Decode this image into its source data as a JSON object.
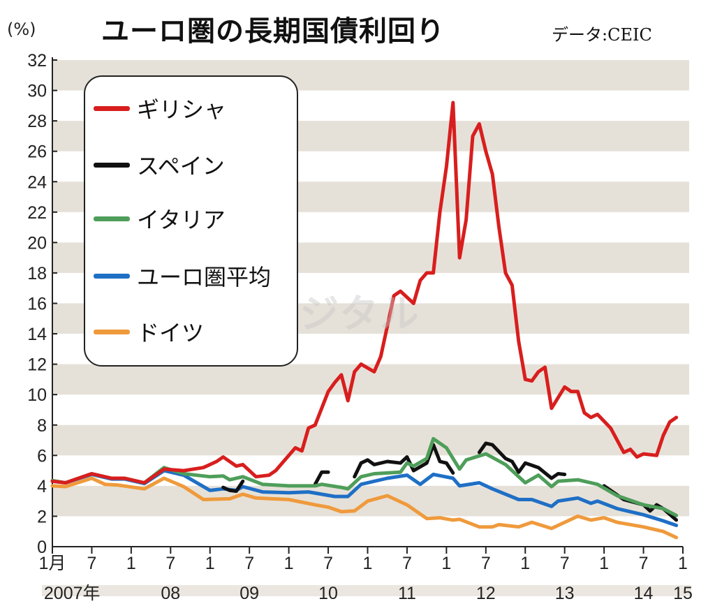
{
  "chart_data": {
    "type": "line",
    "title": "ユーロ圏の長期国債利回り",
    "source": "データ:CEIC",
    "ylabel": "(%)",
    "xlabel": "",
    "ylim": [
      0,
      32
    ],
    "y_ticks": [
      "0",
      "2",
      "4",
      "6",
      "8",
      "10",
      "12",
      "14",
      "16",
      "18",
      "20",
      "22",
      "24",
      "26",
      "28",
      "30",
      "32"
    ],
    "x_range": [
      "2007-01",
      "2015-01"
    ],
    "x_tick_labels": [
      {
        "date": "2007-01",
        "label": "1月"
      },
      {
        "date": "2007-07",
        "label": "7"
      },
      {
        "date": "2008-01",
        "label": "1"
      },
      {
        "date": "2008-07",
        "label": "7"
      },
      {
        "date": "2009-01",
        "label": "1"
      },
      {
        "date": "2009-07",
        "label": "7"
      },
      {
        "date": "2010-01",
        "label": "1"
      },
      {
        "date": "2010-07",
        "label": "7"
      },
      {
        "date": "2011-01",
        "label": "1"
      },
      {
        "date": "2011-07",
        "label": "7"
      },
      {
        "date": "2012-01",
        "label": "1"
      },
      {
        "date": "2012-07",
        "label": "7"
      },
      {
        "date": "2013-01",
        "label": "1"
      },
      {
        "date": "2013-07",
        "label": "7"
      },
      {
        "date": "2014-01",
        "label": "1"
      },
      {
        "date": "2014-07",
        "label": "7"
      },
      {
        "date": "2015-01",
        "label": "1"
      }
    ],
    "year_labels": [
      {
        "date": "2007-04",
        "label": "2007年"
      },
      {
        "date": "2008-07",
        "label": "08"
      },
      {
        "date": "2009-07",
        "label": "09"
      },
      {
        "date": "2010-07",
        "label": "10"
      },
      {
        "date": "2011-07",
        "label": "11"
      },
      {
        "date": "2012-07",
        "label": "12"
      },
      {
        "date": "2013-07",
        "label": "13"
      },
      {
        "date": "2014-07",
        "label": "14"
      },
      {
        "date": "2015-01",
        "label": "15"
      }
    ],
    "grid": "alternating horizontal bands every 2 units",
    "band_color": "#e6e1d8",
    "legend_position": "top-left",
    "series": [
      {
        "name": "ギリシャ",
        "color": "#d81e1e",
        "segments": [
          [
            [
              "2007-01",
              4.3
            ],
            [
              "2007-03",
              4.2
            ],
            [
              "2007-07",
              4.8
            ],
            [
              "2007-10",
              4.5
            ],
            [
              "2007-12",
              4.5
            ],
            [
              "2008-03",
              4.2
            ],
            [
              "2008-06",
              5.1
            ],
            [
              "2008-09",
              5.0
            ],
            [
              "2008-12",
              5.2
            ],
            [
              "2009-02",
              5.6
            ],
            [
              "2009-03",
              5.9
            ],
            [
              "2009-05",
              5.3
            ],
            [
              "2009-06",
              5.4
            ],
            [
              "2009-08",
              4.6
            ],
            [
              "2009-10",
              4.7
            ],
            [
              "2009-11",
              5.0
            ],
            [
              "2010-02",
              6.5
            ],
            [
              "2010-03",
              6.3
            ],
            [
              "2010-04",
              7.8
            ],
            [
              "2010-05",
              8.0
            ],
            [
              "2010-07",
              10.2
            ],
            [
              "2010-08",
              10.8
            ],
            [
              "2010-09",
              11.3
            ],
            [
              "2010-10",
              9.6
            ],
            [
              "2010-11",
              11.5
            ],
            [
              "2010-12",
              12.0
            ],
            [
              "2011-02",
              11.5
            ],
            [
              "2011-03",
              12.5
            ],
            [
              "2011-05",
              16.5
            ],
            [
              "2011-06",
              16.8
            ],
            [
              "2011-08",
              16.0
            ],
            [
              "2011-09",
              17.5
            ],
            [
              "2011-10",
              18.0
            ],
            [
              "2011-11",
              18.0
            ],
            [
              "2011-12",
              22.0
            ],
            [
              "2012-01",
              25.0
            ],
            [
              "2012-02",
              29.2
            ],
            [
              "2012-03",
              19.0
            ],
            [
              "2012-04",
              21.5
            ],
            [
              "2012-05",
              27.0
            ],
            [
              "2012-06",
              27.8
            ],
            [
              "2012-07",
              26.0
            ],
            [
              "2012-08",
              24.5
            ],
            [
              "2012-09",
              21.0
            ],
            [
              "2012-10",
              18.0
            ],
            [
              "2012-11",
              17.2
            ],
            [
              "2012-12",
              13.5
            ],
            [
              "2013-01",
              11.0
            ],
            [
              "2013-02",
              10.9
            ],
            [
              "2013-03",
              11.5
            ],
            [
              "2013-04",
              11.8
            ],
            [
              "2013-05",
              9.1
            ],
            [
              "2013-06",
              9.8
            ],
            [
              "2013-07",
              10.5
            ],
            [
              "2013-08",
              10.2
            ],
            [
              "2013-09",
              10.2
            ],
            [
              "2013-10",
              8.8
            ],
            [
              "2013-11",
              8.5
            ],
            [
              "2013-12",
              8.7
            ],
            [
              "2014-02",
              7.8
            ],
            [
              "2014-04",
              6.2
            ],
            [
              "2014-05",
              6.4
            ],
            [
              "2014-06",
              5.9
            ],
            [
              "2014-07",
              6.1
            ],
            [
              "2014-09",
              6.0
            ],
            [
              "2014-10",
              7.3
            ],
            [
              "2014-11",
              8.2
            ],
            [
              "2014-12",
              8.5
            ]
          ]
        ]
      },
      {
        "name": "スペイン",
        "color": "#111111",
        "segments": [
          [
            [
              "2009-03",
              3.9
            ],
            [
              "2009-04",
              3.7
            ],
            [
              "2009-05",
              3.65
            ],
            [
              "2009-06",
              4.3
            ]
          ],
          [
            [
              "2010-05",
              4.1
            ],
            [
              "2010-06",
              4.9
            ],
            [
              "2010-07",
              4.9
            ]
          ],
          [
            [
              "2010-11",
              4.6
            ],
            [
              "2010-12",
              5.5
            ],
            [
              "2011-01",
              5.7
            ],
            [
              "2011-02",
              5.4
            ],
            [
              "2011-04",
              5.6
            ],
            [
              "2011-06",
              5.5
            ],
            [
              "2011-07",
              5.9
            ],
            [
              "2011-08",
              5.0
            ],
            [
              "2011-10",
              5.5
            ],
            [
              "2011-11",
              6.7
            ],
            [
              "2011-12",
              5.6
            ],
            [
              "2012-01",
              5.5
            ],
            [
              "2012-02",
              4.85
            ]
          ],
          [
            [
              "2012-06",
              6.2
            ],
            [
              "2012-07",
              6.8
            ],
            [
              "2012-08",
              6.7
            ],
            [
              "2012-10",
              5.8
            ],
            [
              "2012-11",
              5.6
            ],
            [
              "2012-12",
              4.9
            ],
            [
              "2013-01",
              5.5
            ],
            [
              "2013-03",
              5.2
            ],
            [
              "2013-05",
              4.5
            ],
            [
              "2013-06",
              4.8
            ],
            [
              "2013-07",
              4.75
            ]
          ],
          [
            [
              "2014-01",
              4.0
            ],
            [
              "2014-04",
              3.1
            ],
            [
              "2014-07",
              2.75
            ],
            [
              "2014-08",
              2.35
            ],
            [
              "2014-09",
              2.75
            ],
            [
              "2014-10",
              2.5
            ],
            [
              "2014-12",
              1.75
            ]
          ]
        ]
      },
      {
        "name": "イタリア",
        "color": "#4e9e5a",
        "segments": [
          [
            [
              "2007-01",
              4.35
            ],
            [
              "2007-03",
              4.2
            ],
            [
              "2007-07",
              4.8
            ],
            [
              "2007-10",
              4.5
            ],
            [
              "2007-12",
              4.5
            ],
            [
              "2008-03",
              4.2
            ],
            [
              "2008-06",
              5.2
            ],
            [
              "2008-09",
              4.8
            ],
            [
              "2009-01",
              4.6
            ],
            [
              "2009-03",
              4.65
            ],
            [
              "2009-04",
              4.4
            ],
            [
              "2009-06",
              4.6
            ],
            [
              "2009-09",
              4.1
            ],
            [
              "2010-01",
              4.0
            ],
            [
              "2010-05",
              4.0
            ],
            [
              "2010-06",
              4.1
            ],
            [
              "2010-09",
              3.9
            ],
            [
              "2010-10",
              3.8
            ],
            [
              "2010-12",
              4.6
            ],
            [
              "2011-02",
              4.8
            ],
            [
              "2011-06",
              4.9
            ],
            [
              "2011-07",
              5.5
            ],
            [
              "2011-08",
              5.3
            ],
            [
              "2011-10",
              5.8
            ],
            [
              "2011-11",
              7.1
            ],
            [
              "2012-01",
              6.5
            ],
            [
              "2012-03",
              5.1
            ],
            [
              "2012-04",
              5.7
            ],
            [
              "2012-07",
              6.1
            ],
            [
              "2012-10",
              5.4
            ],
            [
              "2013-01",
              4.2
            ],
            [
              "2013-03",
              4.7
            ],
            [
              "2013-05",
              3.95
            ],
            [
              "2013-06",
              4.3
            ],
            [
              "2013-09",
              4.4
            ],
            [
              "2013-12",
              4.1
            ],
            [
              "2014-03",
              3.35
            ],
            [
              "2014-07",
              2.75
            ],
            [
              "2014-10",
              2.5
            ],
            [
              "2014-12",
              2.05
            ]
          ]
        ]
      },
      {
        "name": "ユーロ圏平均",
        "color": "#1f6fc5",
        "segments": [
          [
            [
              "2007-01",
              4.3
            ],
            [
              "2007-03",
              4.2
            ],
            [
              "2007-07",
              4.75
            ],
            [
              "2007-10",
              4.45
            ],
            [
              "2007-12",
              4.45
            ],
            [
              "2008-03",
              4.15
            ],
            [
              "2008-06",
              5.0
            ],
            [
              "2008-09",
              4.7
            ],
            [
              "2009-01",
              3.7
            ],
            [
              "2009-03",
              3.8
            ],
            [
              "2009-05",
              3.7
            ],
            [
              "2009-06",
              3.95
            ],
            [
              "2009-09",
              3.6
            ],
            [
              "2010-01",
              3.55
            ],
            [
              "2010-04",
              3.6
            ],
            [
              "2010-06",
              3.45
            ],
            [
              "2010-08",
              3.3
            ],
            [
              "2010-10",
              3.3
            ],
            [
              "2010-12",
              4.1
            ],
            [
              "2011-02",
              4.3
            ],
            [
              "2011-04",
              4.5
            ],
            [
              "2011-07",
              4.7
            ],
            [
              "2011-09",
              4.1
            ],
            [
              "2011-11",
              4.75
            ],
            [
              "2012-02",
              4.5
            ],
            [
              "2012-03",
              4.0
            ],
            [
              "2012-06",
              4.2
            ],
            [
              "2012-08",
              3.8
            ],
            [
              "2012-12",
              3.1
            ],
            [
              "2013-02",
              3.1
            ],
            [
              "2013-05",
              2.65
            ],
            [
              "2013-06",
              3.0
            ],
            [
              "2013-09",
              3.2
            ],
            [
              "2013-11",
              2.85
            ],
            [
              "2013-12",
              3.0
            ],
            [
              "2014-03",
              2.5
            ],
            [
              "2014-07",
              2.1
            ],
            [
              "2014-10",
              1.7
            ],
            [
              "2014-12",
              1.4
            ]
          ]
        ]
      },
      {
        "name": "ドイツ",
        "color": "#ef9a3c",
        "segments": [
          [
            [
              "2007-01",
              4.0
            ],
            [
              "2007-03",
              3.95
            ],
            [
              "2007-07",
              4.5
            ],
            [
              "2007-09",
              4.1
            ],
            [
              "2007-11",
              4.05
            ],
            [
              "2008-03",
              3.8
            ],
            [
              "2008-06",
              4.5
            ],
            [
              "2008-09",
              3.95
            ],
            [
              "2008-12",
              3.1
            ],
            [
              "2009-04",
              3.15
            ],
            [
              "2009-06",
              3.45
            ],
            [
              "2009-08",
              3.2
            ],
            [
              "2010-01",
              3.1
            ],
            [
              "2010-05",
              2.75
            ],
            [
              "2010-07",
              2.6
            ],
            [
              "2010-09",
              2.3
            ],
            [
              "2010-11",
              2.35
            ],
            [
              "2011-01",
              3.0
            ],
            [
              "2011-04",
              3.35
            ],
            [
              "2011-07",
              2.75
            ],
            [
              "2011-10",
              1.85
            ],
            [
              "2011-12",
              1.9
            ],
            [
              "2012-02",
              1.75
            ],
            [
              "2012-03",
              1.8
            ],
            [
              "2012-06",
              1.3
            ],
            [
              "2012-08",
              1.3
            ],
            [
              "2012-09",
              1.45
            ],
            [
              "2012-12",
              1.3
            ],
            [
              "2013-02",
              1.6
            ],
            [
              "2013-05",
              1.2
            ],
            [
              "2013-07",
              1.6
            ],
            [
              "2013-09",
              2.0
            ],
            [
              "2013-11",
              1.75
            ],
            [
              "2014-01",
              1.9
            ],
            [
              "2014-03",
              1.6
            ],
            [
              "2014-07",
              1.3
            ],
            [
              "2014-10",
              1.0
            ],
            [
              "2014-12",
              0.6
            ]
          ]
        ]
      }
    ]
  },
  "watermark": "産經デジタル"
}
